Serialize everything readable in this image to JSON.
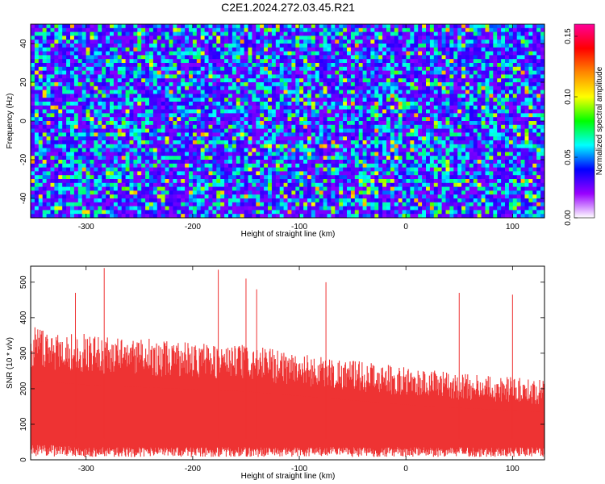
{
  "title": "C2E1.2024.272.03.45.R21",
  "chart_data": [
    {
      "type": "heatmap",
      "xlabel": "Height of straight line (km)",
      "ylabel": "Frequency (Hz)",
      "xlim": [
        -352,
        130
      ],
      "ylim": [
        -50,
        50
      ],
      "x_ticks": [
        -300,
        -200,
        -100,
        0,
        100
      ],
      "y_ticks": [
        -40,
        -20,
        0,
        20,
        40
      ],
      "colorbar": {
        "label": "Normalized spectral amplitude",
        "range": [
          0.0,
          0.16
        ],
        "ticks": [
          "0.00",
          "0.05",
          "0.10",
          "0.15"
        ],
        "colormap": [
          "#ffffff",
          "#9900ff",
          "#0000ff",
          "#00ffff",
          "#00ff00",
          "#ffff00",
          "#ff8800",
          "#ff0000",
          "#ff0099"
        ]
      },
      "description": "noisy broadband spectrum, mostly dark blue (~0.02-0.04) with scattered cyan/green cells (~0.05-0.08) and rare yellow/orange peaks (~0.10-0.12)",
      "value_distribution": {
        "typical": 0.03,
        "common_high": 0.06,
        "rare_peak": 0.11
      }
    },
    {
      "type": "area",
      "xlabel": "Height of straight line (km)",
      "ylabel": "SNR (10 * v/v)",
      "xlim": [
        -352,
        130
      ],
      "ylim": [
        0,
        545
      ],
      "x_ticks": [
        -300,
        -200,
        -100,
        0,
        100
      ],
      "y_ticks": [
        0,
        100,
        200,
        300,
        400,
        500
      ],
      "color": "#ee3333",
      "envelope": {
        "x": [
          -350,
          -300,
          -250,
          -200,
          -150,
          -100,
          -50,
          0,
          50,
          100,
          130
        ],
        "upper_typical": [
          360,
          340,
          330,
          320,
          310,
          290,
          270,
          250,
          235,
          225,
          215
        ],
        "lower_typical": [
          25,
          20,
          20,
          20,
          20,
          20,
          20,
          20,
          20,
          20,
          20
        ]
      },
      "peaks": [
        {
          "x": -283,
          "y": 540
        },
        {
          "x": -176,
          "y": 535
        },
        {
          "x": -150,
          "y": 510
        },
        {
          "x": -75,
          "y": 500
        },
        {
          "x": -310,
          "y": 470
        },
        {
          "x": -140,
          "y": 480
        },
        {
          "x": 50,
          "y": 470
        },
        {
          "x": 100,
          "y": 465
        }
      ]
    }
  ]
}
